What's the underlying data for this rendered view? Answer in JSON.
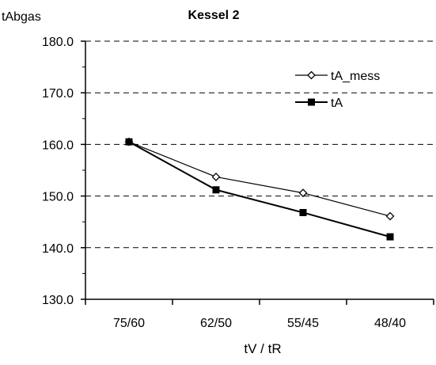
{
  "chart_data": {
    "type": "line",
    "title": "Kessel 2",
    "ylabel": "tAbgas",
    "xlabel": "tV / tR",
    "categories": [
      "75/60",
      "62/50",
      "55/45",
      "48/40"
    ],
    "ylim": [
      130,
      180
    ],
    "yticks": [
      "130.0",
      "140.0",
      "150.0",
      "160.0",
      "170.0",
      "180.0"
    ],
    "grid": "horizontal-dashed",
    "legend_position": "top-right",
    "series": [
      {
        "name": "tA_mess",
        "marker": "diamond",
        "values": [
          160.5,
          153.7,
          150.6,
          146.1
        ]
      },
      {
        "name": "tA",
        "marker": "square",
        "values": [
          160.5,
          151.2,
          146.8,
          142.1
        ]
      }
    ]
  }
}
